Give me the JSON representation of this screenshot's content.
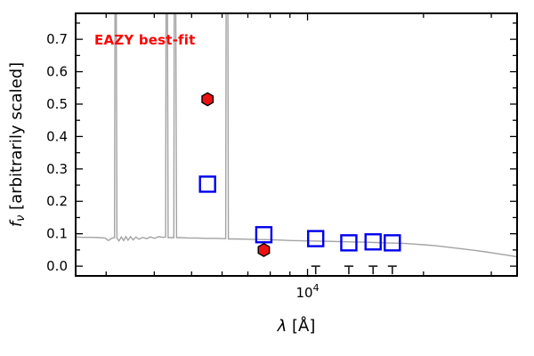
{
  "chart_data": {
    "type": "line+scatter",
    "title": "",
    "annotation": {
      "text": "EAZY best-fit",
      "color": "#ff0000",
      "bold": true
    },
    "xlabel": {
      "symbol": "λ",
      "rest": " [Å]"
    },
    "ylabel": {
      "symbol": "f",
      "subscript": "ν",
      "rest": " [arbitrarily scaled]"
    },
    "x_scale": "log",
    "y_scale": "linear",
    "xlim": [
      2500,
      35000
    ],
    "ylim": [
      -0.03,
      0.78
    ],
    "grid": false,
    "legend": false,
    "y_major_ticks": [
      0.0,
      0.1,
      0.2,
      0.3,
      0.4,
      0.5,
      0.6,
      0.7
    ],
    "y_minor_ticks": [
      0.05,
      0.15,
      0.25,
      0.35,
      0.45,
      0.55,
      0.65,
      0.75
    ],
    "x_major_ticks": [
      {
        "value": 10000,
        "label_base": "10",
        "label_exp": "4"
      }
    ],
    "x_minor_ticks": [
      3000,
      4000,
      5000,
      6000,
      7000,
      8000,
      9000,
      20000,
      30000
    ],
    "colors": {
      "spectrum": "#a3a3a3",
      "model_photometry": "#0000ee",
      "observed_photometry": "#ee1111",
      "observed_edge": "#000000",
      "upper_limit": "#1a1a1a",
      "annotation": "#ff0000",
      "frame": "#000000"
    },
    "series": [
      {
        "name": "model-spectrum",
        "type": "line",
        "color": "#a3a3a3",
        "points": [
          [
            2500,
            0.09
          ],
          [
            2620,
            0.089
          ],
          [
            2750,
            0.089
          ],
          [
            2880,
            0.088
          ],
          [
            2980,
            0.087
          ],
          [
            3040,
            0.079
          ],
          [
            3110,
            0.087
          ],
          [
            3155,
            0.088
          ],
          [
            3165,
            0.95
          ],
          [
            3185,
            0.95
          ],
          [
            3200,
            0.086
          ],
          [
            3240,
            0.078
          ],
          [
            3285,
            0.09
          ],
          [
            3330,
            0.079
          ],
          [
            3375,
            0.091
          ],
          [
            3420,
            0.08
          ],
          [
            3470,
            0.091
          ],
          [
            3525,
            0.081
          ],
          [
            3585,
            0.09
          ],
          [
            3650,
            0.083
          ],
          [
            3730,
            0.089
          ],
          [
            3820,
            0.085
          ],
          [
            3910,
            0.09
          ],
          [
            4010,
            0.086
          ],
          [
            4110,
            0.091
          ],
          [
            4210,
            0.089
          ],
          [
            4280,
            0.09
          ],
          [
            4295,
            0.95
          ],
          [
            4325,
            0.95
          ],
          [
            4345,
            0.088
          ],
          [
            4495,
            0.088
          ],
          [
            4510,
            0.95
          ],
          [
            4545,
            0.95
          ],
          [
            4570,
            0.088
          ],
          [
            4700,
            0.088
          ],
          [
            4900,
            0.087
          ],
          [
            5150,
            0.087
          ],
          [
            5450,
            0.086
          ],
          [
            5750,
            0.086
          ],
          [
            6050,
            0.085
          ],
          [
            6130,
            0.085
          ],
          [
            6150,
            0.95
          ],
          [
            6205,
            0.95
          ],
          [
            6230,
            0.084
          ],
          [
            6500,
            0.084
          ],
          [
            7000,
            0.083
          ],
          [
            7600,
            0.082
          ],
          [
            8300,
            0.081
          ],
          [
            9100,
            0.079
          ],
          [
            10000,
            0.078
          ],
          [
            11000,
            0.077
          ],
          [
            12000,
            0.076
          ],
          [
            13000,
            0.075
          ],
          [
            14000,
            0.074
          ],
          [
            15000,
            0.073
          ],
          [
            16000,
            0.072
          ],
          [
            17000,
            0.071
          ],
          [
            18000,
            0.07
          ],
          [
            19000,
            0.068
          ],
          [
            20000,
            0.066
          ],
          [
            21500,
            0.063
          ],
          [
            23000,
            0.059
          ],
          [
            25000,
            0.054
          ],
          [
            27000,
            0.049
          ],
          [
            29000,
            0.044
          ],
          [
            31000,
            0.039
          ],
          [
            33000,
            0.034
          ],
          [
            35000,
            0.029
          ]
        ]
      },
      {
        "name": "model-photometry",
        "type": "scatter",
        "marker": "open-square",
        "color": "#0000ee",
        "x": [
          5500,
          7700,
          10500,
          12800,
          14800,
          16600
        ],
        "y": [
          0.253,
          0.097,
          0.085,
          0.072,
          0.075,
          0.072
        ]
      },
      {
        "name": "observed-photometry",
        "type": "scatter",
        "marker": "filled-hexagon",
        "color": "#ee1111",
        "edge": "#000000",
        "x": [
          5500,
          7700
        ],
        "y": [
          0.515,
          0.05
        ]
      },
      {
        "name": "flux-upper-limits",
        "type": "scatter",
        "marker": "upper-limit",
        "color": "#1a1a1a",
        "x": [
          10500,
          12800,
          14800,
          16600
        ],
        "y": [
          0.0,
          0.0,
          0.0,
          0.0
        ]
      }
    ]
  }
}
